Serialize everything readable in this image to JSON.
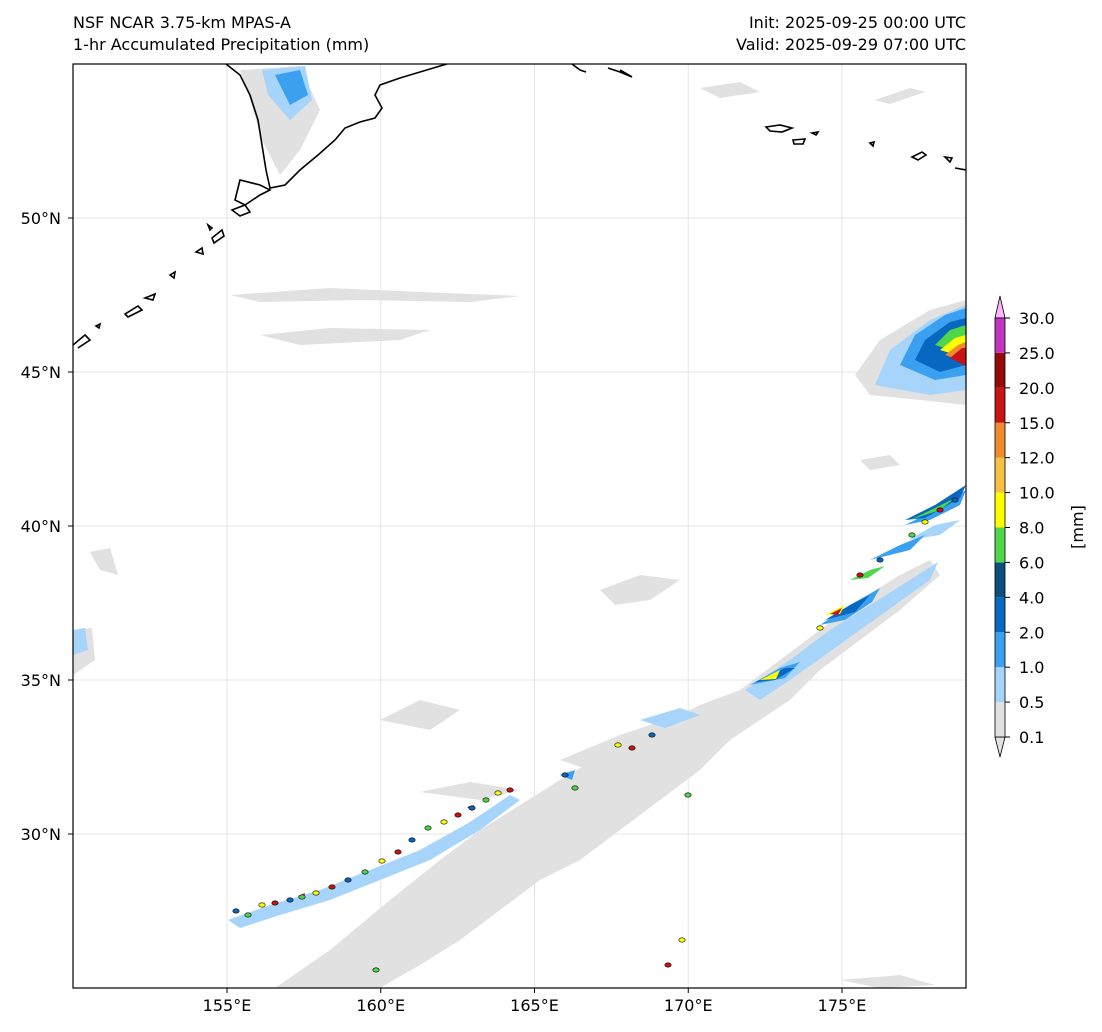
{
  "header": {
    "model_line": "NSF NCAR 3.75-km MPAS-A",
    "field_line": "1-hr Accumulated Precipitation (mm)",
    "init_line": "Init: 2025-09-25 00:00 UTC",
    "valid_line": "Valid: 2025-09-29 07:00 UTC"
  },
  "map": {
    "lon_labels": [
      "155°E",
      "160°E",
      "165°E",
      "170°E",
      "175°E"
    ],
    "lat_labels": [
      "50°N",
      "45°N",
      "40°N",
      "35°N",
      "30°N"
    ],
    "lon_values": [
      155,
      160,
      165,
      170,
      175
    ],
    "lat_values": [
      50,
      45,
      40,
      35,
      30
    ],
    "gridlines": true
  },
  "colorbar": {
    "unit_label": "[mm]",
    "levels": [
      "0.1",
      "0.5",
      "1.0",
      "2.0",
      "4.0",
      "6.0",
      "8.0",
      "10.0",
      "12.0",
      "15.0",
      "20.0",
      "25.0",
      "30.0"
    ],
    "colors": [
      "#e1e1e1",
      "#a6d4fa",
      "#3ca0f0",
      "#0867c0",
      "#0a4f7e",
      "#4fd64a",
      "#ffff00",
      "#f6c142",
      "#f08a2c",
      "#c81414",
      "#960a0a",
      "#c036c0",
      "#ffb4ff"
    ],
    "extend": "both"
  }
}
